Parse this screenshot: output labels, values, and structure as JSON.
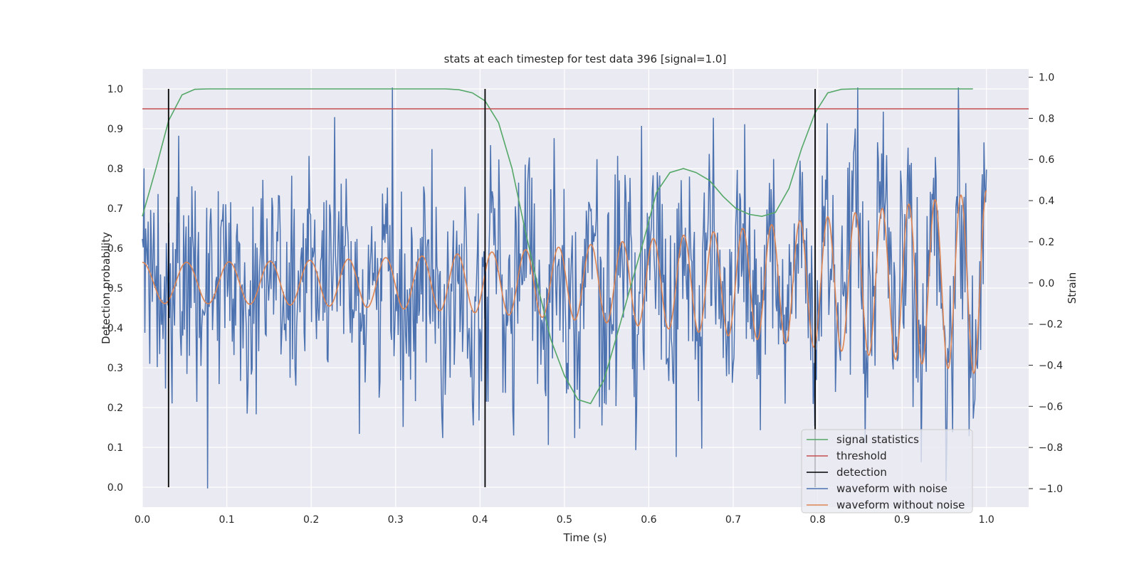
{
  "chart_data": {
    "type": "line",
    "title": "stats at each timestep for test data 396 [signal=1.0]",
    "xlabel": "Time (s)",
    "ylabel_left": "Detection probability",
    "ylabel_right": "Strain",
    "xlim": [
      0.0,
      1.05
    ],
    "ylim_left": [
      -0.05,
      1.05
    ],
    "ylim_right": [
      -1.09,
      1.04
    ],
    "grid": true,
    "legend_position": "lower-right",
    "xticks": [
      "0.0",
      "0.1",
      "0.2",
      "0.3",
      "0.4",
      "0.5",
      "0.6",
      "0.7",
      "0.8",
      "0.9",
      "1.0"
    ],
    "yticks_left": [
      "0.0",
      "0.1",
      "0.2",
      "0.3",
      "0.4",
      "0.5",
      "0.6",
      "0.7",
      "0.8",
      "0.9",
      "1.0"
    ],
    "yticks_right": [
      "−1.0",
      "−0.8",
      "−0.6",
      "−0.4",
      "−0.2",
      "0.0",
      "0.2",
      "0.4",
      "0.6",
      "0.8",
      "1.0"
    ],
    "colors": {
      "signal_statistics": "#55a868",
      "threshold": "#c44e52",
      "detection": "#000000",
      "waveform_with_noise": "#4c72b0",
      "waveform_without_noise": "#dd8452",
      "plot_background": "#eaeaf2",
      "grid": "#ffffff"
    },
    "series": [
      {
        "name": "signal statistics",
        "axis": "left",
        "x": [
          0.0,
          0.016,
          0.031,
          0.047,
          0.062,
          0.078,
          0.094,
          0.109,
          0.125,
          0.141,
          0.156,
          0.172,
          0.188,
          0.203,
          0.219,
          0.234,
          0.25,
          0.266,
          0.281,
          0.297,
          0.312,
          0.328,
          0.344,
          0.359,
          0.375,
          0.391,
          0.406,
          0.422,
          0.438,
          0.453,
          0.469,
          0.484,
          0.5,
          0.516,
          0.531,
          0.547,
          0.562,
          0.578,
          0.594,
          0.609,
          0.625,
          0.641,
          0.656,
          0.672,
          0.688,
          0.703,
          0.719,
          0.734,
          0.75,
          0.766,
          0.781,
          0.797,
          0.812,
          0.828,
          0.844,
          0.859,
          0.875,
          0.891,
          0.906,
          0.922,
          0.938,
          0.953,
          0.969,
          0.984
        ],
        "y": [
          0.68,
          0.8,
          0.92,
          0.985,
          0.999,
          1.0,
          1.0,
          1.0,
          1.0,
          1.0,
          1.0,
          1.0,
          1.0,
          1.0,
          1.0,
          1.0,
          1.0,
          1.0,
          1.0,
          1.0,
          1.0,
          1.0,
          1.0,
          1.0,
          0.998,
          0.99,
          0.97,
          0.915,
          0.8,
          0.65,
          0.5,
          0.37,
          0.28,
          0.22,
          0.21,
          0.27,
          0.38,
          0.5,
          0.62,
          0.74,
          0.79,
          0.8,
          0.79,
          0.77,
          0.73,
          0.7,
          0.685,
          0.68,
          0.69,
          0.75,
          0.85,
          0.94,
          0.99,
          0.999,
          1.0,
          1.0,
          1.0,
          1.0,
          1.0,
          1.0,
          1.0,
          1.0,
          1.0,
          1.0
        ]
      },
      {
        "name": "threshold",
        "axis": "left",
        "x": [
          0.0,
          1.05
        ],
        "y": [
          0.95,
          0.95
        ]
      },
      {
        "name": "detection",
        "axis": "left",
        "x_events": [
          0.031,
          0.406,
          0.797
        ],
        "y_range": [
          0.0,
          1.0
        ]
      },
      {
        "name": "waveform with noise",
        "axis": "right",
        "x_range": [
          0.0,
          1.0
        ],
        "sample_count": 1024,
        "noise_std": 0.27,
        "observed_range": [
          -1.0,
          0.95
        ]
      },
      {
        "name": "waveform without noise",
        "axis": "right",
        "x_range": [
          0.0,
          1.0
        ],
        "oscillation_cycles": 26,
        "amplitude_start": 0.1,
        "amplitude_end": 0.45
      }
    ]
  }
}
